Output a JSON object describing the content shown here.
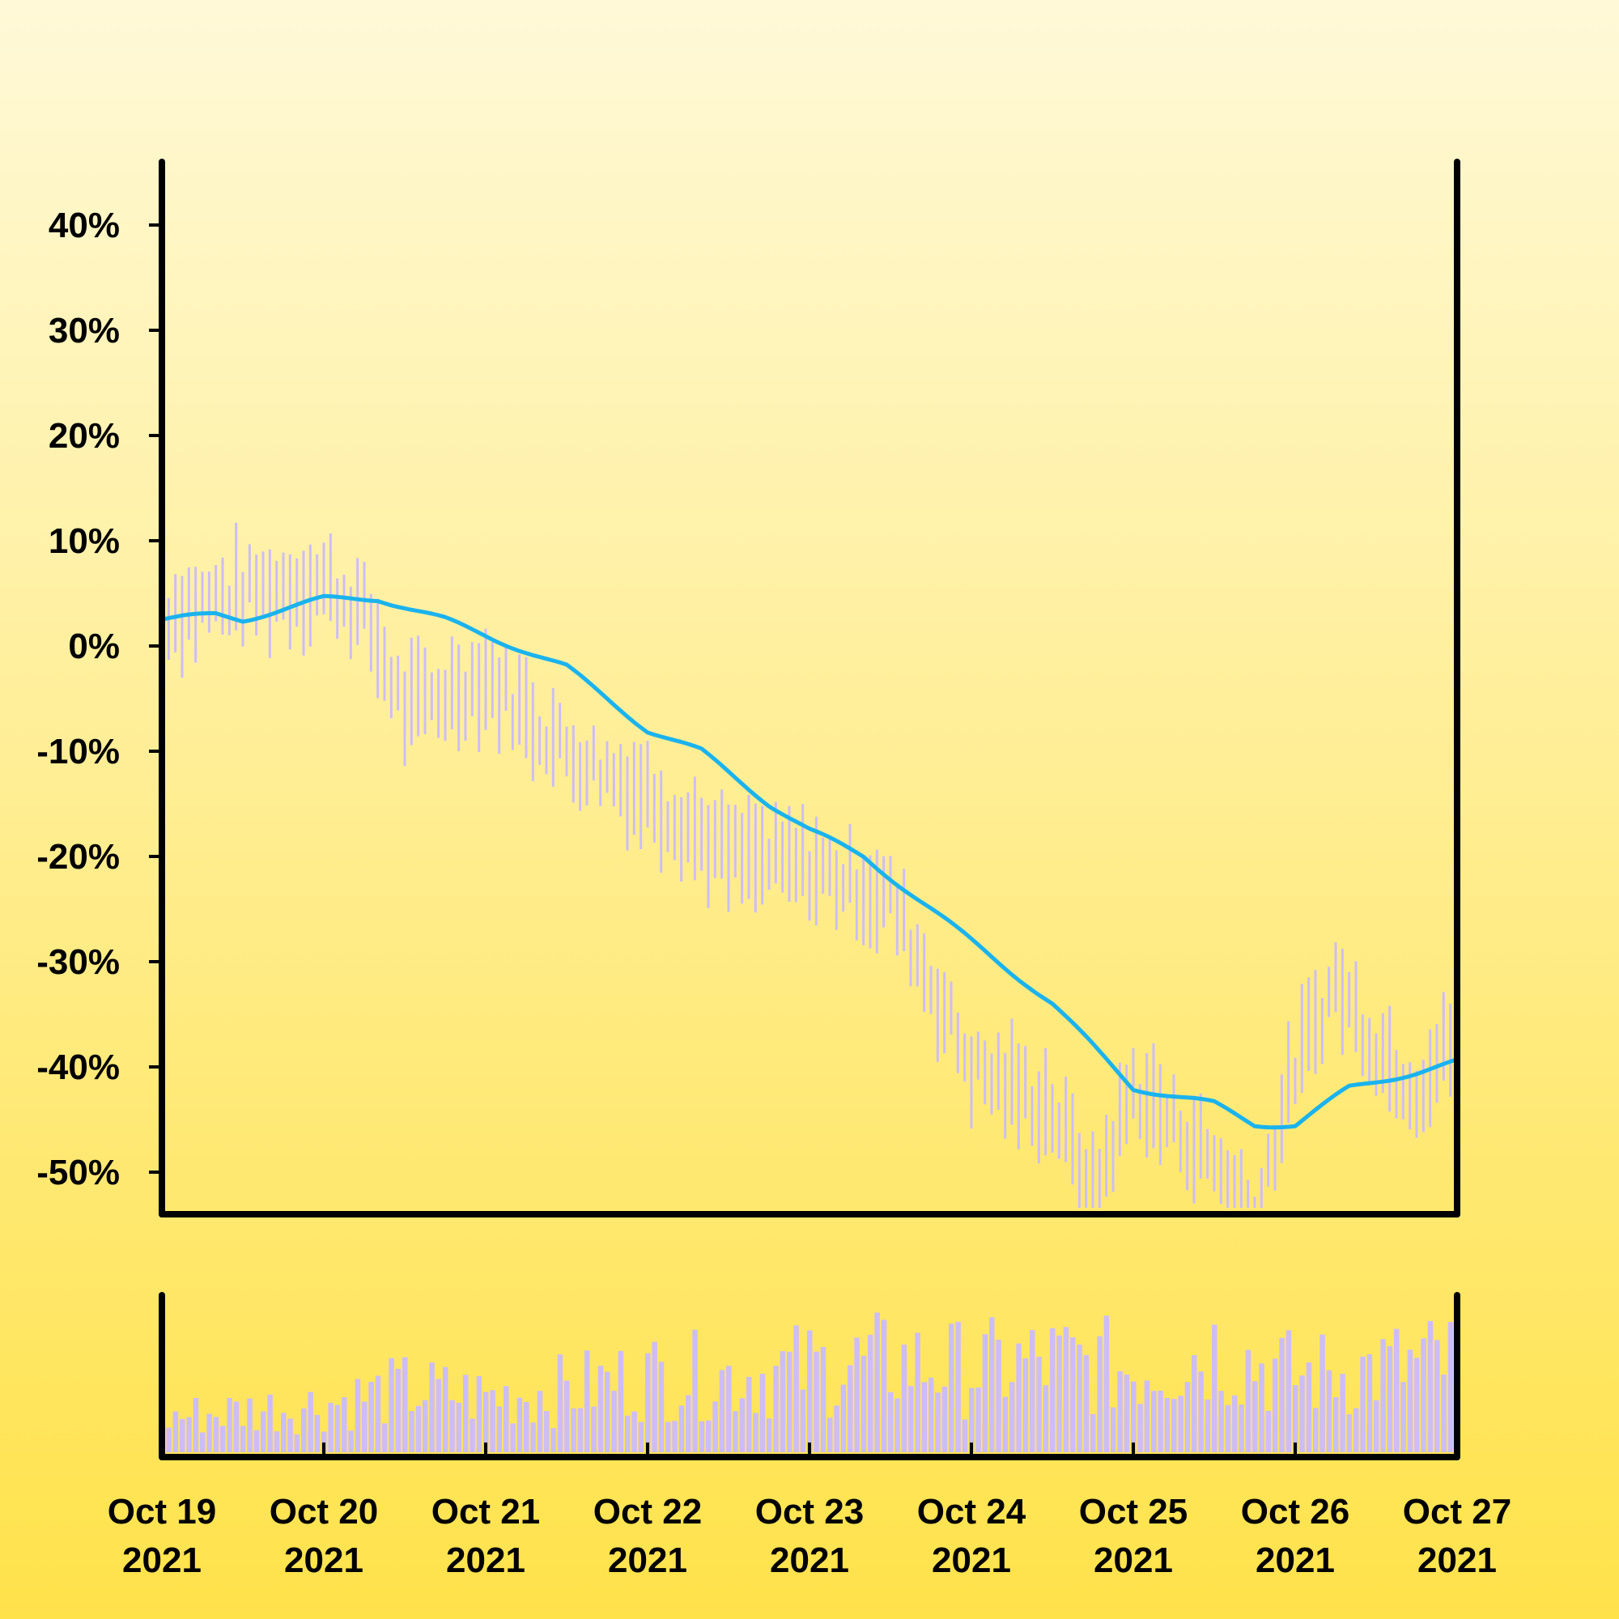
{
  "chart_data": {
    "type": "line",
    "title": "",
    "xlabel": "",
    "ylabel": "",
    "x_ticks": [
      {
        "label1": "Oct 19",
        "label2": "2021"
      },
      {
        "label1": "Oct 20",
        "label2": "2021"
      },
      {
        "label1": "Oct 21",
        "label2": "2021"
      },
      {
        "label1": "Oct 22",
        "label2": "2021"
      },
      {
        "label1": "Oct 23",
        "label2": "2021"
      },
      {
        "label1": "Oct 24",
        "label2": "2021"
      },
      {
        "label1": "Oct 25",
        "label2": "2021"
      },
      {
        "label1": "Oct 26",
        "label2": "2021"
      },
      {
        "label1": "Oct 27",
        "label2": "2021"
      }
    ],
    "xlim": [
      "2021-10-19",
      "2021-10-27"
    ],
    "y_ticks": [
      "40%",
      "30%",
      "20%",
      "10%",
      "0%",
      "-10%",
      "-20%",
      "-30%",
      "-40%",
      "-50%"
    ],
    "y_tick_values": [
      40,
      30,
      20,
      10,
      0,
      -10,
      -20,
      -30,
      -40,
      -50
    ],
    "ylim": [
      -54,
      46
    ],
    "grid": false,
    "legend": "none",
    "colors": {
      "line": "#1ab3ee",
      "bars": "#cdbdf7",
      "axis": "#000000"
    },
    "series": [
      {
        "kind": "moving-average line",
        "points": [
          [
            "2021-10-19 00:00",
            2.5
          ],
          [
            "2021-10-19 08:00",
            3.0
          ],
          [
            "2021-10-19 12:00",
            2.5
          ],
          [
            "2021-10-19 18:00",
            3.5
          ],
          [
            "2021-10-20 00:00",
            4.5
          ],
          [
            "2021-10-20 08:00",
            4.5
          ],
          [
            "2021-10-20 18:00",
            2.5
          ],
          [
            "2021-10-21 00:00",
            1.0
          ],
          [
            "2021-10-21 12:00",
            -2.0
          ],
          [
            "2021-10-22 00:00",
            -8.0
          ],
          [
            "2021-10-22 08:00",
            -10.0
          ],
          [
            "2021-10-22 18:00",
            -15.0
          ],
          [
            "2021-10-23 00:00",
            -17.5
          ],
          [
            "2021-10-23 08:00",
            -20.0
          ],
          [
            "2021-10-23 18:00",
            -25.0
          ],
          [
            "2021-10-24 00:00",
            -28.0
          ],
          [
            "2021-10-24 12:00",
            -34.0
          ],
          [
            "2021-10-24 18:00",
            -38.0
          ],
          [
            "2021-10-25 00:00",
            -42.0
          ],
          [
            "2021-10-25 12:00",
            -43.5
          ],
          [
            "2021-10-25 18:00",
            -45.5
          ],
          [
            "2021-10-26 00:00",
            -45.5
          ],
          [
            "2021-10-26 08:00",
            -42.0
          ],
          [
            "2021-10-26 18:00",
            -40.5
          ],
          [
            "2021-10-27 00:00",
            -39.5
          ]
        ]
      },
      {
        "kind": "price range bars",
        "color": "#cdbdf7",
        "trend": [
          [
            "2021-10-19 00:00",
            3.0
          ],
          [
            "2021-10-19 12:00",
            5.0
          ],
          [
            "2021-10-20 00:00",
            6.0
          ],
          [
            "2021-10-20 06:00",
            3.0
          ],
          [
            "2021-10-20 12:00",
            -6.0
          ],
          [
            "2021-10-21 00:00",
            -3.0
          ],
          [
            "2021-10-21 12:00",
            -10.0
          ],
          [
            "2021-10-22 00:00",
            -14.0
          ],
          [
            "2021-10-22 12:00",
            -20.0
          ],
          [
            "2021-10-23 00:00",
            -21.0
          ],
          [
            "2021-10-23 12:00",
            -24.0
          ],
          [
            "2021-10-23 18:00",
            -32.0
          ],
          [
            "2021-10-24 00:00",
            -40.0
          ],
          [
            "2021-10-24 12:00",
            -44.0
          ],
          [
            "2021-10-24 18:00",
            -52.0
          ],
          [
            "2021-10-25 00:00",
            -42.0
          ],
          [
            "2021-10-25 12:00",
            -49.0
          ],
          [
            "2021-10-25 18:00",
            -54.0
          ],
          [
            "2021-10-26 00:00",
            -40.0
          ],
          [
            "2021-10-26 06:00",
            -32.0
          ],
          [
            "2021-10-26 12:00",
            -38.0
          ],
          [
            "2021-10-26 18:00",
            -42.0
          ],
          [
            "2021-10-27 00:00",
            -37.0
          ]
        ]
      },
      {
        "kind": "volume bars",
        "color": "#cdbdf7",
        "levels": [
          [
            "2021-10-19 00:00",
            0.25
          ],
          [
            "2021-10-19 12:00",
            0.3
          ],
          [
            "2021-10-20 00:00",
            0.35
          ],
          [
            "2021-10-20 12:00",
            0.45
          ],
          [
            "2021-10-21 00:00",
            0.4
          ],
          [
            "2021-10-21 12:00",
            0.45
          ],
          [
            "2021-10-22 00:00",
            0.55
          ],
          [
            "2021-10-22 12:00",
            0.55
          ],
          [
            "2021-10-23 00:00",
            0.6
          ],
          [
            "2021-10-23 12:00",
            0.65
          ],
          [
            "2021-10-24 00:00",
            0.6
          ],
          [
            "2021-10-24 12:00",
            0.65
          ],
          [
            "2021-10-25 00:00",
            0.6
          ],
          [
            "2021-10-25 12:00",
            0.75
          ],
          [
            "2021-10-26 00:00",
            0.55
          ],
          [
            "2021-10-26 12:00",
            0.6
          ],
          [
            "2021-10-27 00:00",
            0.65
          ]
        ]
      }
    ]
  }
}
